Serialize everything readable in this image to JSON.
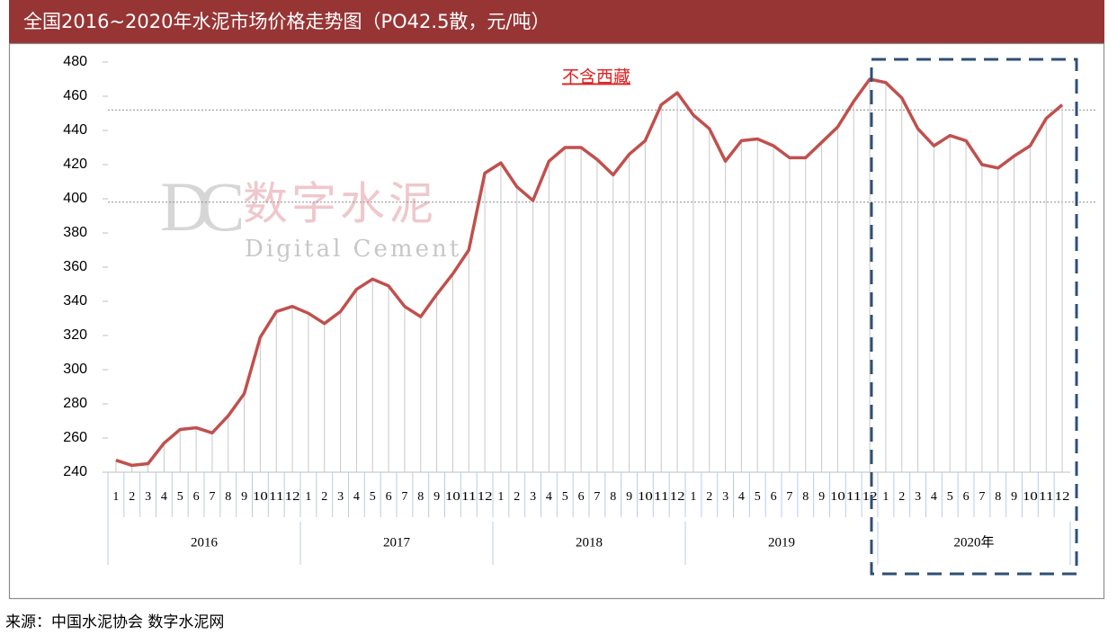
{
  "chart_data": {
    "type": "line",
    "title": "全国2016~2020年水泥市场价格走势图（PO42.5散，元/吨）",
    "annotation": "不含西藏",
    "source": "来源：中国水泥协会  数字水泥网",
    "watermark": {
      "logo": "DC",
      "name": "数字水泥",
      "name_en": "Digital Cement"
    },
    "color": "#c0504d",
    "ylim": [
      240,
      480
    ],
    "yticks": [
      240,
      260,
      280,
      300,
      320,
      340,
      360,
      380,
      400,
      420,
      440,
      460,
      480
    ],
    "reference_lines": [
      452,
      398
    ],
    "groups": [
      {
        "label": "2016",
        "categories": [
          "1",
          "2",
          "3",
          "4",
          "5",
          "6",
          "7",
          "8",
          "9",
          "10",
          "11",
          "12"
        ],
        "values": [
          247,
          244,
          245,
          257,
          265,
          266,
          263,
          273,
          286,
          319,
          334,
          337
        ]
      },
      {
        "label": "2017",
        "categories": [
          "1",
          "2",
          "3",
          "4",
          "5",
          "6",
          "7",
          "8",
          "9",
          "10",
          "11",
          "12"
        ],
        "values": [
          333,
          327,
          334,
          347,
          353,
          349,
          337,
          331,
          344,
          356,
          370,
          415
        ]
      },
      {
        "label": "2018",
        "categories": [
          "1",
          "2",
          "3",
          "4",
          "5",
          "6",
          "7",
          "8",
          "9",
          "10",
          "11",
          "12"
        ],
        "values": [
          421,
          407,
          399,
          422,
          430,
          430,
          423,
          414,
          426,
          434,
          455,
          462
        ]
      },
      {
        "label": "2019",
        "categories": [
          "1",
          "2",
          "3",
          "4",
          "5",
          "6",
          "7",
          "8",
          "9",
          "10",
          "11",
          "12"
        ],
        "values": [
          449,
          441,
          422,
          434,
          435,
          431,
          424,
          424,
          433,
          442,
          457,
          470
        ]
      },
      {
        "label": "2020年",
        "categories": [
          "1",
          "2",
          "3",
          "4",
          "5",
          "6",
          "7",
          "8",
          "9",
          "10",
          "11",
          "12"
        ],
        "values": [
          468,
          459,
          441,
          431,
          437,
          434,
          420,
          418,
          425,
          431,
          447,
          455
        ]
      }
    ]
  }
}
